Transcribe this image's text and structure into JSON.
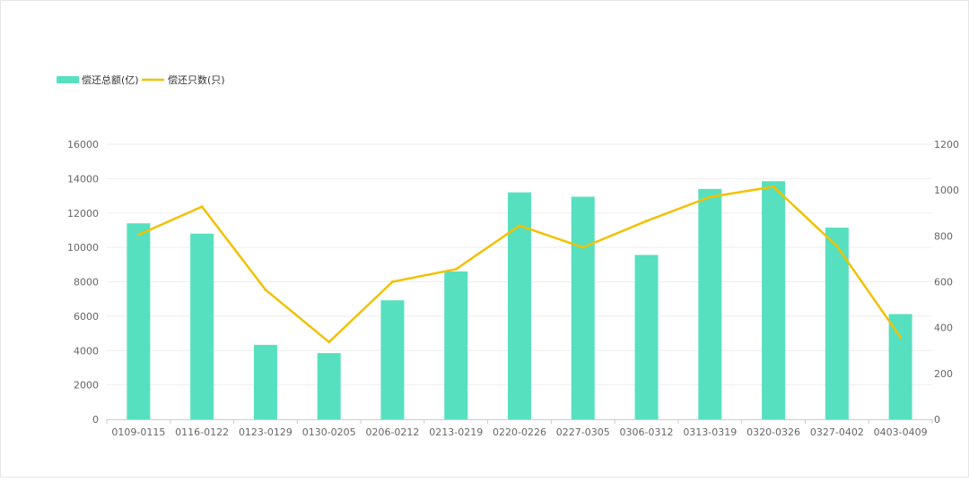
{
  "chart_data": {
    "type": "bar",
    "categories": [
      "0109-0115",
      "0116-0122",
      "0123-0129",
      "0130-0205",
      "0206-0212",
      "0213-0219",
      "0220-0226",
      "0227-0305",
      "0306-0312",
      "0313-0319",
      "0320-0326",
      "0327-0402",
      "0403-0409"
    ],
    "series": [
      {
        "name": "偿还总额(亿)",
        "type": "bar",
        "axis": "left",
        "color": "#57e0bf",
        "values": [
          11400,
          10800,
          4330,
          3850,
          6920,
          8600,
          13200,
          12950,
          9560,
          13400,
          13850,
          11150,
          6120
        ]
      },
      {
        "name": "偿还只数(只)",
        "type": "line",
        "axis": "right",
        "color": "#f2c100",
        "values": [
          805,
          928,
          565,
          337,
          600,
          655,
          845,
          750,
          865,
          970,
          1015,
          755,
          358
        ]
      }
    ],
    "y_left": {
      "ylim": [
        0,
        16000
      ],
      "ticks": [
        "0",
        "2000",
        "4000",
        "6000",
        "8000",
        "10000",
        "12000",
        "14000",
        "16000"
      ]
    },
    "y_right": {
      "ylim": [
        0,
        1200
      ],
      "ticks": [
        "0",
        "200",
        "400",
        "600",
        "800",
        "1000",
        "1200"
      ]
    },
    "legend_position": "top-left",
    "grid": true,
    "colors": {
      "axis_text": "#666666",
      "grid": "#eeeeee",
      "axis_line": "#cccccc"
    }
  }
}
